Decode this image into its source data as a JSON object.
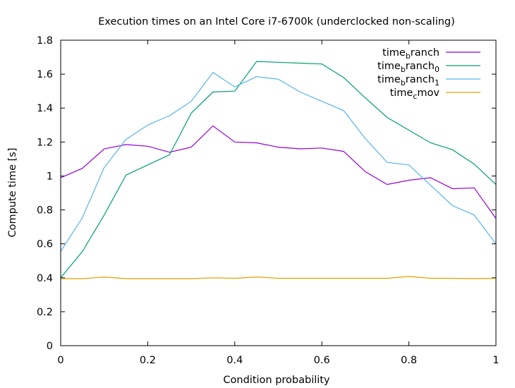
{
  "chart_data": {
    "type": "line",
    "title": "Execution times on an Intel Core i7-6700k (underclocked non-scaling)",
    "xlabel": "Condition probability",
    "ylabel": "Compute time [s]",
    "xlim": [
      0,
      1
    ],
    "ylim": [
      0,
      1.8
    ],
    "xticks": [
      0,
      0.2,
      0.4,
      0.6,
      0.8,
      1
    ],
    "xtick_labels": [
      "0",
      "0.2",
      "0.4",
      "0.6",
      "0.8",
      "1"
    ],
    "yticks": [
      0,
      0.2,
      0.4,
      0.6,
      0.8,
      1,
      1.2,
      1.4,
      1.6,
      1.8
    ],
    "ytick_labels": [
      "0",
      "0.2",
      "0.4",
      "0.6",
      "0.8",
      "1",
      "1.2",
      "1.4",
      "1.6",
      "1.8"
    ],
    "grid": false,
    "legend_position": "top-right",
    "x": [
      0,
      0.05,
      0.1,
      0.15,
      0.2,
      0.25,
      0.3,
      0.35,
      0.4,
      0.45,
      0.5,
      0.55,
      0.6,
      0.65,
      0.7,
      0.75,
      0.8,
      0.85,
      0.9,
      0.95,
      1
    ],
    "series": [
      {
        "name_base": "time",
        "name_sub": "b",
        "name_rest": "ranch",
        "color": "#9400d3",
        "values": [
          0.99,
          1.045,
          1.16,
          1.185,
          1.175,
          1.14,
          1.17,
          1.295,
          1.2,
          1.195,
          1.17,
          1.16,
          1.165,
          1.145,
          1.025,
          0.95,
          0.975,
          0.99,
          0.925,
          0.93,
          0.75
        ]
      },
      {
        "name_base": "time",
        "name_sub": "b",
        "name_rest": "ranch",
        "name_sub2": "0",
        "color": "#009e73",
        "values": [
          0.4,
          0.555,
          0.77,
          1.005,
          1.065,
          1.125,
          1.37,
          1.495,
          1.5,
          1.675,
          1.67,
          1.665,
          1.66,
          1.58,
          1.46,
          1.345,
          1.27,
          1.195,
          1.155,
          1.07,
          0.95
        ]
      },
      {
        "name_base": "time",
        "name_sub": "b",
        "name_rest": "ranch",
        "name_sub2": "1",
        "color": "#56b4e9",
        "values": [
          0.555,
          0.755,
          1.05,
          1.215,
          1.3,
          1.355,
          1.44,
          1.61,
          1.525,
          1.585,
          1.57,
          1.495,
          1.44,
          1.385,
          1.22,
          1.08,
          1.065,
          0.945,
          0.825,
          0.77,
          0.6
        ]
      },
      {
        "name_base": "time",
        "name_sub": "c",
        "name_rest": "mov",
        "color": "#e69f00",
        "values": [
          0.395,
          0.395,
          0.405,
          0.395,
          0.395,
          0.395,
          0.395,
          0.4,
          0.397,
          0.405,
          0.397,
          0.397,
          0.397,
          0.397,
          0.397,
          0.397,
          0.408,
          0.397,
          0.397,
          0.395,
          0.397
        ]
      }
    ]
  }
}
